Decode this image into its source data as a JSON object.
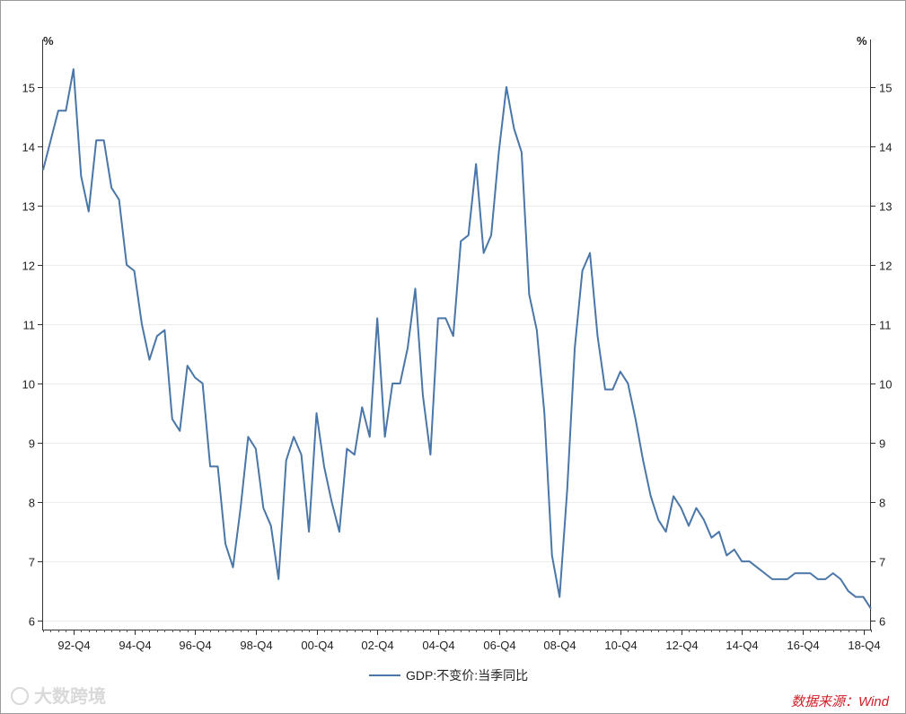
{
  "chart_data": {
    "type": "line",
    "y_unit_left": "%",
    "y_unit_right": "%",
    "ylim": [
      5.85,
      15.8
    ],
    "yticks": [
      6,
      7,
      8,
      9,
      10,
      11,
      12,
      13,
      14,
      15
    ],
    "xtick_labels": [
      "92-Q4",
      "94-Q4",
      "96-Q4",
      "98-Q4",
      "00-Q4",
      "02-Q4",
      "04-Q4",
      "06-Q4",
      "08-Q4",
      "10-Q4",
      "12-Q4",
      "14-Q4",
      "16-Q4",
      "18-Q4"
    ],
    "grid": true,
    "legend_position": "bottom-center",
    "series": [
      {
        "name": "GDP:不变价:当季同比",
        "color": "#4a76a8",
        "values": [
          13.6,
          14.1,
          14.6,
          14.6,
          15.3,
          13.5,
          12.9,
          14.1,
          14.1,
          13.3,
          13.1,
          12.0,
          11.9,
          11.0,
          10.4,
          10.8,
          10.9,
          9.4,
          9.2,
          10.3,
          10.1,
          10.0,
          8.6,
          8.6,
          7.3,
          6.9,
          7.9,
          9.1,
          8.9,
          7.9,
          7.6,
          6.7,
          8.7,
          9.1,
          8.8,
          7.5,
          9.5,
          8.6,
          8.0,
          7.5,
          8.9,
          8.8,
          9.6,
          9.1,
          11.1,
          9.1,
          10.0,
          10.0,
          10.6,
          11.6,
          9.8,
          8.8,
          11.1,
          11.1,
          10.8,
          12.4,
          12.5,
          13.7,
          12.2,
          12.5,
          13.9,
          15.0,
          14.3,
          13.9,
          11.5,
          10.9,
          9.5,
          7.1,
          6.4,
          8.2,
          10.6,
          11.9,
          12.2,
          10.8,
          9.9,
          9.9,
          10.2,
          10.0,
          9.4,
          8.7,
          8.1,
          7.7,
          7.5,
          8.1,
          7.9,
          7.6,
          7.9,
          7.7,
          7.4,
          7.5,
          7.1,
          7.2,
          7.0,
          7.0,
          6.9,
          6.8,
          6.7,
          6.7,
          6.7,
          6.8,
          6.8,
          6.8,
          6.7,
          6.7,
          6.8,
          6.7,
          6.5,
          6.4,
          6.4,
          6.2
        ]
      }
    ]
  },
  "legend": {
    "label": "GDP:不变价:当季同比"
  },
  "source_note": "数据来源：Wind",
  "watermark": "大数跨境"
}
